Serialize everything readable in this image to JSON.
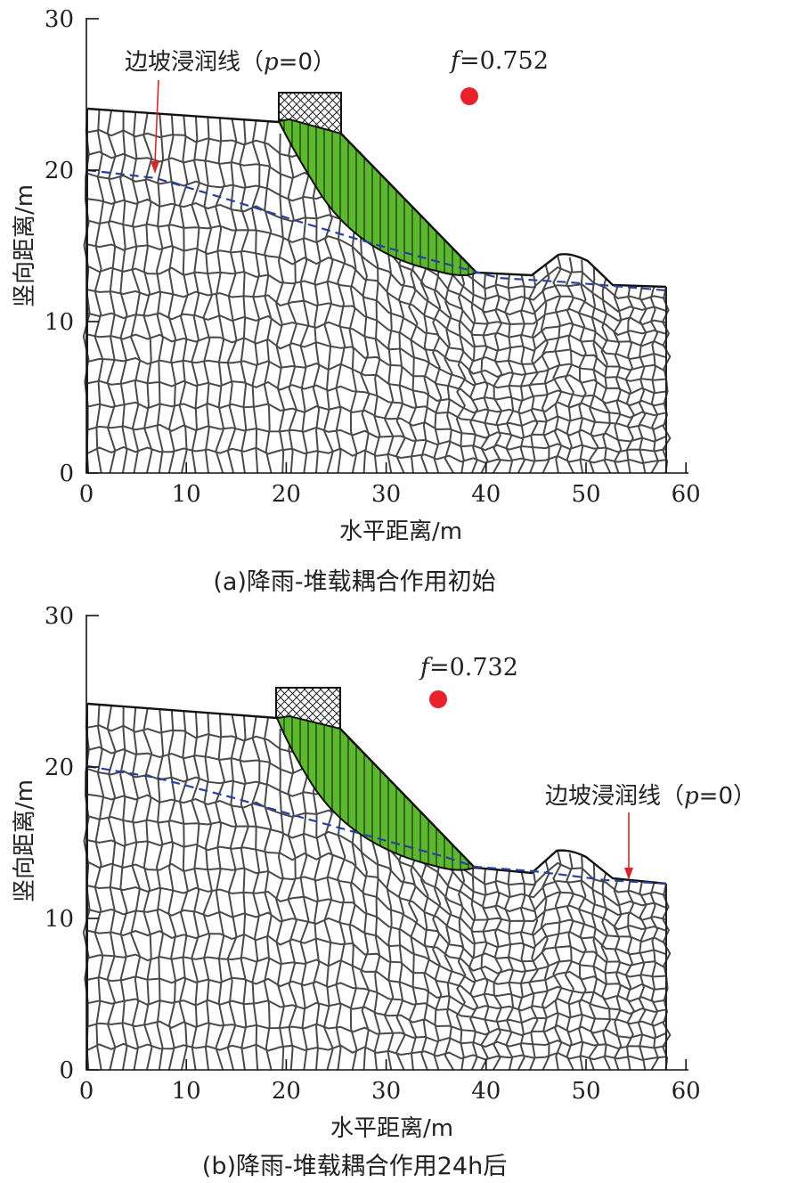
{
  "figure": {
    "panels": [
      {
        "id": "a",
        "caption": "(a)降雨-堆载耦合作用初始",
        "xlabel": "水平距离/m",
        "ylabel": "竖向距离/m",
        "x_ticks": [
          "0",
          "10",
          "20",
          "30",
          "40",
          "50",
          "60"
        ],
        "y_ticks": [
          "0",
          "10",
          "20",
          "30"
        ],
        "factor_prefix": "f",
        "factor_value": "=0.752",
        "seepage_label_main": "边坡浸润线（",
        "seepage_label_var": "p",
        "seepage_label_end": "=0）"
      },
      {
        "id": "b",
        "caption": "(b)降雨-堆载耦合作用24h后",
        "xlabel": "水平距离/m",
        "ylabel": "竖向距离/m",
        "x_ticks": [
          "0",
          "10",
          "20",
          "30",
          "40",
          "50",
          "60"
        ],
        "y_ticks": [
          "0",
          "10",
          "20",
          "30"
        ],
        "factor_prefix": "f",
        "factor_value": "=0.732",
        "seepage_label_main": "边坡浸润线（",
        "seepage_label_var": "p",
        "seepage_label_end": "=0）"
      }
    ],
    "colors": {
      "sliding_mass": "#5cb82e",
      "seepage_line": "#2b3f9e",
      "marker": "#e8212b",
      "mesh": "#4a4a4a",
      "arrow": "#d9262b"
    }
  }
}
